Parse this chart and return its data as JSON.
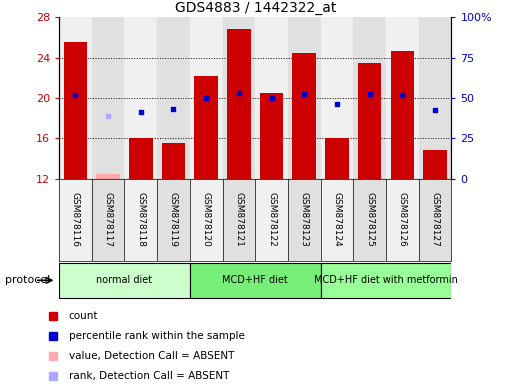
{
  "title": "GDS4883 / 1442322_at",
  "samples": [
    "GSM878116",
    "GSM878117",
    "GSM878118",
    "GSM878119",
    "GSM878120",
    "GSM878121",
    "GSM878122",
    "GSM878123",
    "GSM878124",
    "GSM878125",
    "GSM878126",
    "GSM878127"
  ],
  "bar_values": [
    25.5,
    null,
    16.0,
    15.5,
    22.2,
    26.8,
    20.5,
    24.5,
    16.0,
    23.5,
    24.7,
    14.8
  ],
  "bar_absent_values": [
    null,
    12.5,
    null,
    null,
    null,
    null,
    null,
    null,
    null,
    null,
    null,
    null
  ],
  "dot_values": [
    20.3,
    null,
    18.6,
    18.9,
    20.0,
    20.5,
    20.0,
    20.4,
    19.4,
    20.4,
    20.3,
    18.8
  ],
  "dot_absent_values": [
    null,
    18.2,
    null,
    null,
    null,
    null,
    null,
    null,
    null,
    null,
    null,
    null
  ],
  "bar_color": "#cc0000",
  "bar_absent_color": "#ffaaaa",
  "dot_color": "#0000cc",
  "dot_absent_color": "#aaaaff",
  "ylim": [
    12,
    28
  ],
  "yticks": [
    12,
    16,
    20,
    24,
    28
  ],
  "y2ticks": [
    0,
    25,
    50,
    75,
    100
  ],
  "y2tick_labels": [
    "0",
    "25",
    "50",
    "75",
    "100%"
  ],
  "grid_lines": [
    16,
    20,
    24
  ],
  "protocols": [
    {
      "label": "normal diet",
      "start": 0,
      "end": 3,
      "color": "#ccffcc"
    },
    {
      "label": "MCD+HF diet",
      "start": 4,
      "end": 7,
      "color": "#77ee77"
    },
    {
      "label": "MCD+HF diet with metformin",
      "start": 8,
      "end": 11,
      "color": "#99ff99"
    }
  ],
  "legend_items": [
    {
      "label": "count",
      "color": "#cc0000"
    },
    {
      "label": "percentile rank within the sample",
      "color": "#0000cc"
    },
    {
      "label": "value, Detection Call = ABSENT",
      "color": "#ffaaaa"
    },
    {
      "label": "rank, Detection Call = ABSENT",
      "color": "#aaaaff"
    }
  ],
  "protocol_label": "protocol",
  "col_bg_even": "#f0f0f0",
  "col_bg_odd": "#e0e0e0",
  "figsize": [
    5.13,
    3.84
  ],
  "dpi": 100
}
